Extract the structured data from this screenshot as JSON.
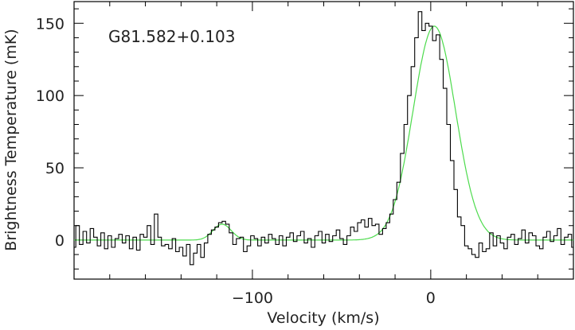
{
  "chart_data": {
    "type": "line",
    "title": "",
    "annotation": "G81.582+0.103",
    "xlabel": "Velocity (km/s)",
    "ylabel": "Brightness Temperature (mK)",
    "xlim": [
      -200,
      80
    ],
    "ylim": [
      -27,
      165
    ],
    "x_ticks": [
      {
        "value": -100,
        "label": "−100"
      },
      {
        "value": 0,
        "label": "0"
      }
    ],
    "y_ticks": [
      {
        "value": 0,
        "label": "0"
      },
      {
        "value": 50,
        "label": "50"
      },
      {
        "value": 100,
        "label": "100"
      },
      {
        "value": 150,
        "label": "150"
      }
    ],
    "grid": false,
    "legend": "none",
    "colors": {
      "data": "#000000",
      "fit": "#4ddb4d",
      "axes": "#000000"
    },
    "series": [
      {
        "style": "step",
        "color": "#000000",
        "x": [
          -200,
          -198,
          -196,
          -194,
          -192,
          -190,
          -188,
          -186,
          -184,
          -182,
          -180,
          -178,
          -176,
          -174,
          -172,
          -170,
          -168,
          -166,
          -164,
          -162,
          -160,
          -158,
          -156,
          -154,
          -152,
          -150,
          -148,
          -146,
          -144,
          -142,
          -140,
          -138,
          -136,
          -134,
          -132,
          -130,
          -128,
          -126,
          -124,
          -122,
          -120,
          -118,
          -116,
          -114,
          -112,
          -110,
          -108,
          -106,
          -104,
          -102,
          -100,
          -98,
          -96,
          -94,
          -92,
          -90,
          -88,
          -86,
          -84,
          -82,
          -80,
          -78,
          -76,
          -74,
          -72,
          -70,
          -68,
          -66,
          -64,
          -62,
          -60,
          -58,
          -56,
          -54,
          -52,
          -50,
          -48,
          -46,
          -44,
          -42,
          -40,
          -38,
          -36,
          -34,
          -32,
          -30,
          -28,
          -26,
          -24,
          -22,
          -20,
          -18,
          -16,
          -14,
          -12,
          -10,
          -8,
          -6,
          -4,
          -2,
          0,
          2,
          4,
          6,
          8,
          10,
          12,
          14,
          16,
          18,
          20,
          22,
          24,
          26,
          28,
          30,
          32,
          34,
          36,
          38,
          40,
          42,
          44,
          46,
          48,
          50,
          52,
          54,
          56,
          58,
          60,
          62,
          64,
          66,
          68,
          70,
          72,
          74,
          76,
          78,
          80
        ],
        "y": [
          -5,
          10,
          -3,
          6,
          -2,
          8,
          2,
          -4,
          5,
          -6,
          3,
          -5,
          1,
          4,
          -2,
          3,
          -6,
          2,
          -7,
          4,
          2,
          10,
          -3,
          18,
          2,
          -4,
          -3,
          -6,
          1,
          -8,
          -5,
          -11,
          -3,
          -17,
          -9,
          -3,
          -12,
          -2,
          4,
          7,
          9,
          12,
          13,
          11,
          5,
          -3,
          1,
          2,
          -8,
          -4,
          3,
          1,
          -4,
          2,
          -2,
          4,
          1,
          -3,
          3,
          -4,
          2,
          5,
          -1,
          3,
          6,
          -2,
          1,
          -5,
          3,
          6,
          -2,
          4,
          -1,
          3,
          7,
          1,
          -3,
          3,
          9,
          6,
          12,
          14,
          9,
          15,
          10,
          11,
          4,
          8,
          12,
          18,
          28,
          40,
          60,
          80,
          100,
          120,
          140,
          158,
          145,
          150,
          148,
          138,
          142,
          125,
          105,
          80,
          55,
          35,
          16,
          10,
          -4,
          -6,
          -10,
          -12,
          -2,
          -8,
          -6,
          5,
          -4,
          3,
          -2,
          -6,
          2,
          4,
          -3,
          1,
          7,
          -2,
          5,
          3,
          -4,
          -6,
          2,
          6,
          -1,
          3,
          8,
          -3,
          2,
          4,
          -5
        ]
      },
      {
        "style": "fit",
        "color": "#4ddb4d",
        "components": [
          {
            "amplitude": 148,
            "center": 2,
            "fwhm": 28
          },
          {
            "amplitude": 11,
            "center": -117,
            "fwhm": 12
          }
        ]
      }
    ]
  }
}
